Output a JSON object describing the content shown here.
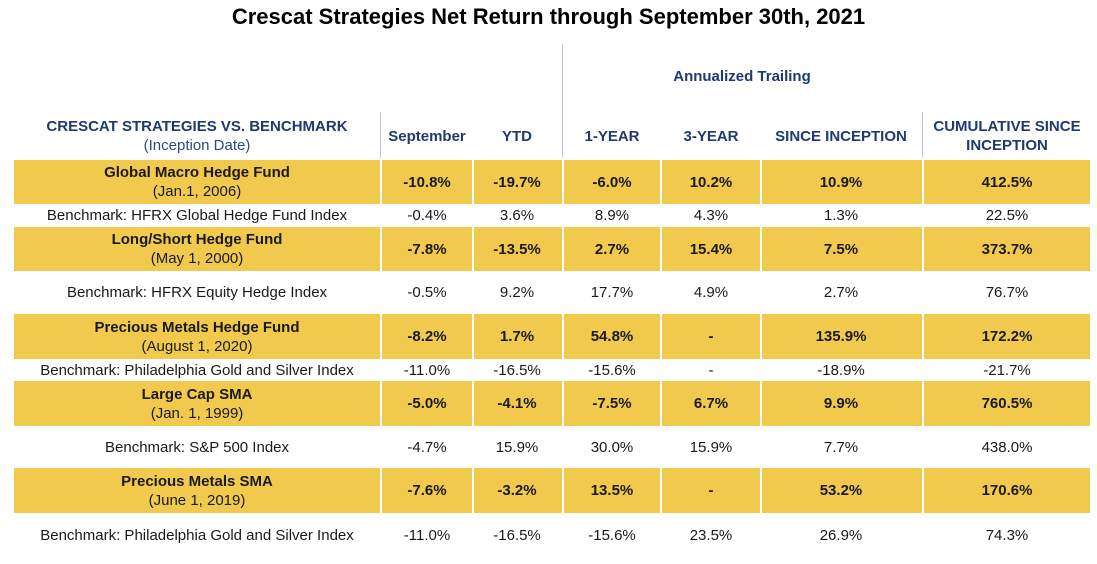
{
  "title": "Crescat Strategies Net Return through September 30th, 2021",
  "header": {
    "group_label": "Annualized Trailing",
    "strategy_label": "CRESCAT STRATEGIES VS. BENCHMARK",
    "strategy_sub": "(Inception Date)",
    "september": "September",
    "ytd": "YTD",
    "one_year": "1-YEAR",
    "three_year": "3-YEAR",
    "since_inception": "SINCE INCEPTION",
    "cumulative": "CUMULATIVE SINCE INCEPTION"
  },
  "rows": [
    {
      "name": "Global Macro Hedge Fund",
      "sub": "(Jan.1, 2006)",
      "sep": "-10.8%",
      "ytd": "-19.7%",
      "y1": "-6.0%",
      "y3": "10.2%",
      "si": "10.9%",
      "cum": "412.5%"
    },
    {
      "name": "Benchmark: HFRX Global Hedge Fund Index",
      "sep": "-0.4%",
      "ytd": "3.6%",
      "y1": "8.9%",
      "y3": "4.3%",
      "si": "1.3%",
      "cum": "22.5%"
    },
    {
      "name": "Long/Short Hedge Fund",
      "sub": "(May 1, 2000)",
      "sep": "-7.8%",
      "ytd": "-13.5%",
      "y1": "2.7%",
      "y3": "15.4%",
      "si": "7.5%",
      "cum": "373.7%"
    },
    {
      "name": "Benchmark: HFRX Equity Hedge Index",
      "sep": "-0.5%",
      "ytd": "9.2%",
      "y1": "17.7%",
      "y3": "4.9%",
      "si": "2.7%",
      "cum": "76.7%"
    },
    {
      "name": "Precious Metals Hedge Fund",
      "sub": "(August 1, 2020)",
      "sep": "-8.2%",
      "ytd": "1.7%",
      "y1": "54.8%",
      "y3": "-",
      "si": "135.9%",
      "cum": "172.2%"
    },
    {
      "name": "Benchmark: Philadelphia Gold and Silver Index",
      "sep": "-11.0%",
      "ytd": "-16.5%",
      "y1": "-15.6%",
      "y3": "-",
      "si": "-18.9%",
      "cum": "-21.7%"
    },
    {
      "name": "Large Cap SMA",
      "sub": "(Jan. 1, 1999)",
      "sep": "-5.0%",
      "ytd": "-4.1%",
      "y1": "-7.5%",
      "y3": "6.7%",
      "si": "9.9%",
      "cum": "760.5%"
    },
    {
      "name": "Benchmark: S&P 500 Index",
      "sep": "-4.7%",
      "ytd": "15.9%",
      "y1": "30.0%",
      "y3": "15.9%",
      "si": "7.7%",
      "cum": "438.0%"
    },
    {
      "name": "Precious Metals SMA",
      "sub": "(June 1, 2019)",
      "sep": "-7.6%",
      "ytd": "-3.2%",
      "y1": "13.5%",
      "y3": "-",
      "si": "53.2%",
      "cum": "170.6%"
    },
    {
      "name": "Benchmark: Philadelphia Gold and Silver Index",
      "sep": "-11.0%",
      "ytd": "-16.5%",
      "y1": "-15.6%",
      "y3": "23.5%",
      "si": "26.9%",
      "cum": "74.3%"
    }
  ]
}
